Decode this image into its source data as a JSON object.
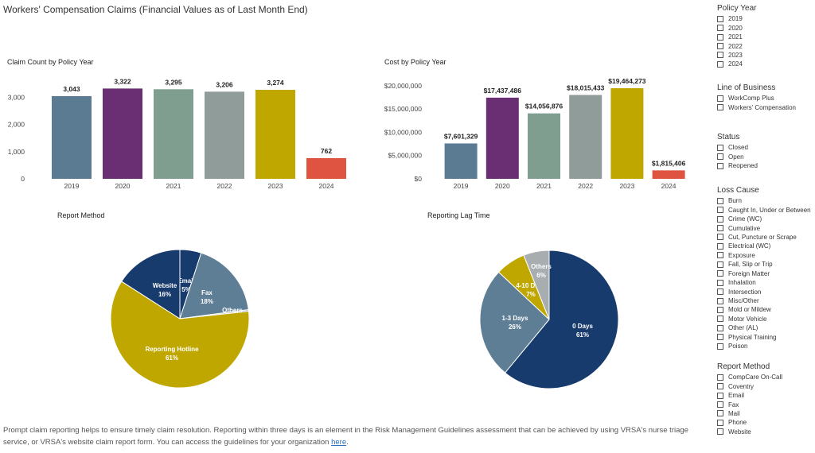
{
  "page_title": "Workers' Compensation Claims (Financial Values as of Last Month End)",
  "colors": {
    "c2019": "#5a7b91",
    "c2020": "#6a2e73",
    "c2021": "#7f9e90",
    "c2022": "#8f9c9a",
    "c2023": "#bfa700",
    "c2024": "#de5440",
    "navy": "#173b6c",
    "steel": "#5e7e95",
    "gold": "#bfa700",
    "gray": "#a8aeb0"
  },
  "chart_data": [
    {
      "type": "bar",
      "title": "Claim Count by Policy Year",
      "categories": [
        "2019",
        "2020",
        "2021",
        "2022",
        "2023",
        "2024"
      ],
      "values": [
        3043,
        3322,
        3295,
        3206,
        3274,
        762
      ],
      "data_labels": [
        "3,043",
        "3,322",
        "3,295",
        "3,206",
        "3,274",
        "762"
      ],
      "yticks": [
        0,
        1000,
        2000,
        3000
      ],
      "ytick_labels": [
        "0",
        "1,000",
        "2,000",
        "3,000"
      ],
      "ylim": [
        0,
        3500
      ],
      "grid": false
    },
    {
      "type": "bar",
      "title": "Cost by Policy Year",
      "categories": [
        "2019",
        "2020",
        "2021",
        "2022",
        "2023",
        "2024"
      ],
      "values": [
        7601329,
        17437486,
        14056876,
        18015433,
        19464273,
        1815406
      ],
      "data_labels": [
        "$7,601,329",
        "$17,437,486",
        "$14,056,876",
        "$18,015,433",
        "$19,464,273",
        "$1,815,406"
      ],
      "yticks": [
        0,
        5000000,
        10000000,
        15000000,
        20000000
      ],
      "ytick_labels": [
        "$0",
        "$5,000,000",
        "$10,000,000",
        "$15,000,000",
        "$20,000,000"
      ],
      "ylim": [
        0,
        21000000
      ],
      "grid": false
    },
    {
      "type": "pie",
      "title": "Report Method",
      "slices": [
        {
          "label": "Email",
          "pct": "5%",
          "value": 5,
          "color": "#173b6c"
        },
        {
          "label": "Fax",
          "pct": "18%",
          "value": 18,
          "color": "#5e7e95"
        },
        {
          "label": "Others",
          "pct": "0%",
          "value": 0.4,
          "color": "#a8aeb0"
        },
        {
          "label": "Reporting Hotline",
          "pct": "61%",
          "value": 61,
          "color": "#bfa700"
        },
        {
          "label": "Website",
          "pct": "16%",
          "value": 16,
          "color": "#173b6c"
        }
      ]
    },
    {
      "type": "pie",
      "title": "Reporting Lag Time",
      "slices": [
        {
          "label": "0 Days",
          "pct": "61%",
          "value": 61,
          "color": "#173b6c"
        },
        {
          "label": "1-3 Days",
          "pct": "26%",
          "value": 26,
          "color": "#5e7e95"
        },
        {
          "label": "4-10 Days",
          "pct": "7%",
          "value": 7,
          "color": "#bfa700"
        },
        {
          "label": "Others",
          "pct": "6%",
          "value": 6,
          "color": "#a8aeb0"
        }
      ]
    }
  ],
  "slicers": [
    {
      "title": "Policy Year",
      "items": [
        "2019",
        "2020",
        "2021",
        "2022",
        "2023",
        "2024"
      ]
    },
    {
      "title": "Line of Business",
      "items": [
        "WorkComp Plus",
        "Workers' Compensation"
      ]
    },
    {
      "title": "Status",
      "items": [
        "Closed",
        "Open",
        "Reopened"
      ]
    },
    {
      "title": "Loss Cause",
      "items": [
        "Burn",
        "Caught In, Under or Between",
        "Crime (WC)",
        "Cumulative",
        "Cut, Puncture or Scrape",
        "Electrical (WC)",
        "Exposure",
        "Fall, Slip or Trip",
        "Foreign Matter",
        "Inhalation",
        "Intersection",
        "Misc/Other",
        "Mold or Mildew",
        "Motor Vehicle",
        "Other (AL)",
        "Physical Training",
        "Poison"
      ]
    },
    {
      "title": "Report Method",
      "items": [
        "CompCare On-Call",
        "Coventry",
        "Email",
        "Fax",
        "Mail",
        "Phone",
        "Website"
      ]
    }
  ],
  "footnote": {
    "text": "Prompt claim reporting helps to ensure timely claim resolution. Reporting within three days is an element in the Risk Management Guidelines assessment that can be achieved by using VRSA's nurse triage service, or VRSA's website claim report form. You can access the guidelines for your organization ",
    "link": "here",
    "end": "."
  }
}
